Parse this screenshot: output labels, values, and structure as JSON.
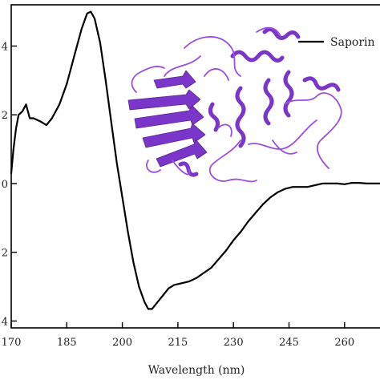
{
  "chart_data": {
    "type": "line",
    "xlabel": "Wavelength (nm)",
    "xlim": [
      170,
      270
    ],
    "x_ticks": [
      170,
      185,
      200,
      215,
      230,
      245,
      260
    ],
    "x_tick_labels": [
      "170",
      "185",
      "200",
      "215",
      "230",
      "245",
      "260"
    ],
    "ylim": [
      -4.2,
      5.2
    ],
    "y_ticks": [
      4,
      2,
      0,
      -2,
      -4
    ],
    "y_tick_labels": [
      "4",
      "2",
      "0",
      "2",
      "4"
    ],
    "legend": {
      "position": "top-right",
      "entries": [
        {
          "label": "Saporin",
          "color": "#000000"
        }
      ]
    },
    "inset": {
      "name": "protein-structure-ribbon",
      "color": "#8a3fd6"
    },
    "series": [
      {
        "name": "Saporin",
        "color": "#000000",
        "points": [
          [
            170,
            0.3
          ],
          [
            170.6,
            1.0
          ],
          [
            171.3,
            1.6
          ],
          [
            172,
            2.0
          ],
          [
            173,
            2.1
          ],
          [
            174,
            2.3
          ],
          [
            175,
            1.9
          ],
          [
            176,
            1.9
          ],
          [
            178,
            1.8
          ],
          [
            179.5,
            1.7
          ],
          [
            181,
            1.9
          ],
          [
            183,
            2.3
          ],
          [
            185,
            2.9
          ],
          [
            187,
            3.7
          ],
          [
            189,
            4.5
          ],
          [
            190.5,
            4.95
          ],
          [
            191.5,
            5.0
          ],
          [
            192.5,
            4.8
          ],
          [
            194,
            4.1
          ],
          [
            195.5,
            3.0
          ],
          [
            197,
            1.8
          ],
          [
            198.5,
            0.6
          ],
          [
            200,
            -0.4
          ],
          [
            201.5,
            -1.4
          ],
          [
            203,
            -2.3
          ],
          [
            204.5,
            -3.0
          ],
          [
            206,
            -3.45
          ],
          [
            207,
            -3.65
          ],
          [
            208,
            -3.65
          ],
          [
            209.5,
            -3.45
          ],
          [
            211,
            -3.25
          ],
          [
            212.5,
            -3.05
          ],
          [
            214,
            -2.95
          ],
          [
            216,
            -2.9
          ],
          [
            218,
            -2.85
          ],
          [
            220,
            -2.75
          ],
          [
            222,
            -2.6
          ],
          [
            224,
            -2.45
          ],
          [
            226,
            -2.2
          ],
          [
            228,
            -1.95
          ],
          [
            230,
            -1.65
          ],
          [
            232,
            -1.4
          ],
          [
            234,
            -1.1
          ],
          [
            236,
            -0.85
          ],
          [
            238,
            -0.6
          ],
          [
            240,
            -0.4
          ],
          [
            242,
            -0.25
          ],
          [
            244,
            -0.15
          ],
          [
            246,
            -0.1
          ],
          [
            248,
            -0.1
          ],
          [
            250,
            -0.1
          ],
          [
            252,
            -0.05
          ],
          [
            254,
            0.0
          ],
          [
            256,
            0.0
          ],
          [
            258,
            0.0
          ],
          [
            260,
            -0.02
          ],
          [
            262,
            0.02
          ],
          [
            264,
            0.02
          ],
          [
            266,
            0.0
          ],
          [
            268,
            0.0
          ],
          [
            270,
            0.0
          ]
        ]
      }
    ]
  }
}
